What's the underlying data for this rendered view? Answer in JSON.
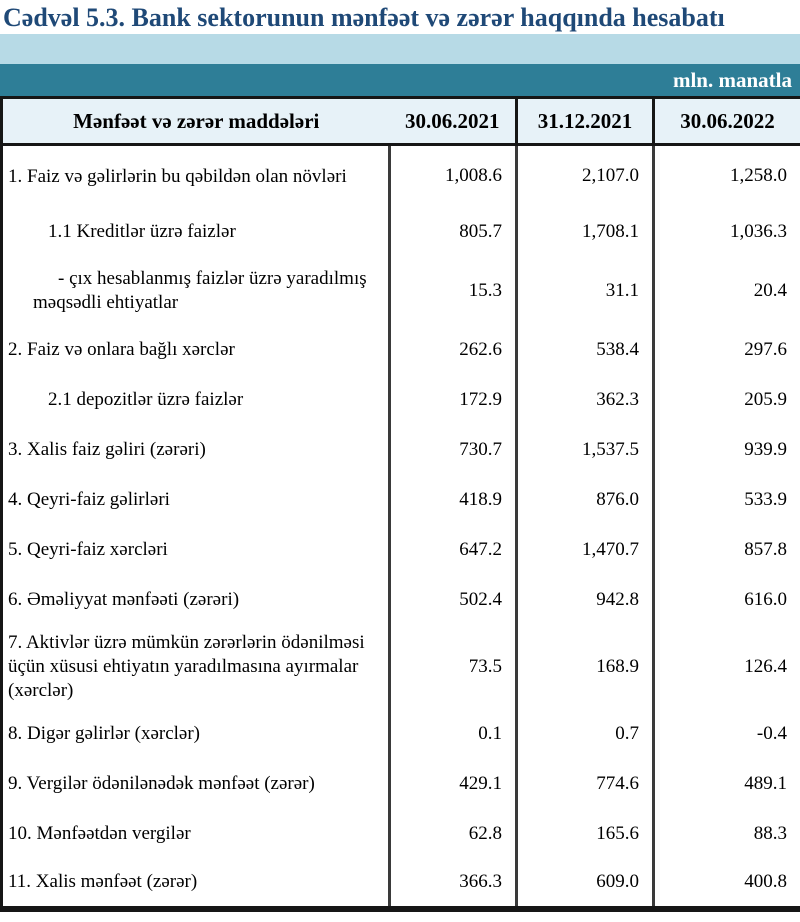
{
  "title": "Cədvəl 5.3. Bank sektorunun mənfəət və zərər haqqında hesabatı",
  "unit_label": "mln. manatla",
  "colors": {
    "title_blue": "#1f4977",
    "band_light": "#b7dae6",
    "band_teal": "#2e7e97",
    "header_bg": "#e7f2f8"
  },
  "table": {
    "columns": [
      "Mənfəət və zərər maddələri",
      "30.06.2021",
      "31.12.2021",
      "30.06.2022"
    ],
    "rows": [
      {
        "label": "1. Faiz və gəlirlərin bu qəbildən olan növləri",
        "indent": 0,
        "values": [
          "1,008.6",
          "2,107.0",
          "1,258.0"
        ]
      },
      {
        "label": "1.1 Kreditlər üzrə faizlər",
        "indent": 1,
        "values": [
          "805.7",
          "1,708.1",
          "1,036.3"
        ]
      },
      {
        "label": "-  çıx hesablanmış faizlər üzrə yaradılmış məqsədli ehtiyatlar",
        "indent": 2,
        "values": [
          "15.3",
          "31.1",
          "20.4"
        ]
      },
      {
        "label": "2. Faiz və onlara bağlı xərclər",
        "indent": 0,
        "values": [
          "262.6",
          "538.4",
          "297.6"
        ]
      },
      {
        "label": "2.1 depozitlər üzrə faizlər",
        "indent": 1,
        "values": [
          "172.9",
          "362.3",
          "205.9"
        ]
      },
      {
        "label": "3. Xalis faiz gəliri (zərəri)",
        "indent": 0,
        "values": [
          "730.7",
          "1,537.5",
          "939.9"
        ]
      },
      {
        "label": "4. Qeyri-faiz gəlirləri",
        "indent": 0,
        "values": [
          "418.9",
          "876.0",
          "533.9"
        ]
      },
      {
        "label": "5. Qeyri-faiz xərcləri",
        "indent": 0,
        "values": [
          "647.2",
          "1,470.7",
          "857.8"
        ]
      },
      {
        "label": "6. Əməliyyat mənfəəti (zərəri)",
        "indent": 0,
        "values": [
          "502.4",
          "942.8",
          "616.0"
        ]
      },
      {
        "label": "7. Aktivlər üzrə mümkün zərərlərin ödənilməsi üçün xüsusi ehtiyatın yaradılmasına ayırmalar (xərclər)",
        "indent": 0,
        "values": [
          "73.5",
          "168.9",
          "126.4"
        ]
      },
      {
        "label": "8. Digər gəlirlər (xərclər)",
        "indent": 0,
        "values": [
          "0.1",
          "0.7",
          "-0.4"
        ]
      },
      {
        "label": "9. Vergilər ödənilənədək mənfəət (zərər)",
        "indent": 0,
        "values": [
          "429.1",
          "774.6",
          "489.1"
        ]
      },
      {
        "label": "10. Mənfəətdən vergilər",
        "indent": 0,
        "values": [
          "62.8",
          "165.6",
          "88.3"
        ]
      },
      {
        "label": "11. Xalis mənfəət (zərər)",
        "indent": 0,
        "values": [
          "366.3",
          "609.0",
          "400.8"
        ]
      }
    ]
  }
}
